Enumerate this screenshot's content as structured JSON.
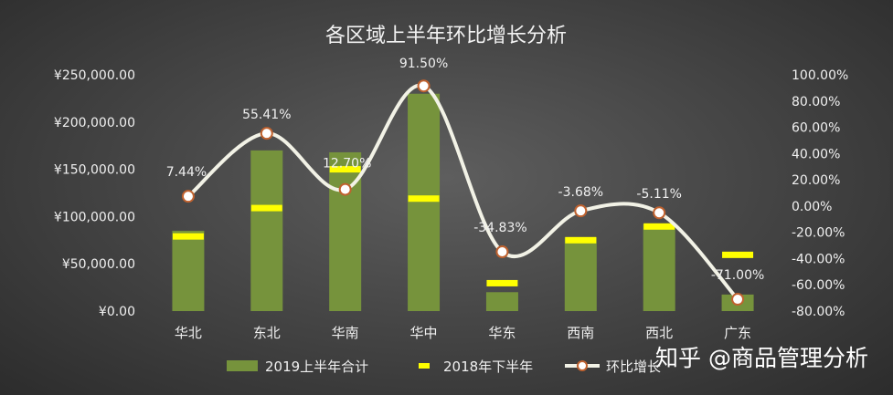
{
  "chart_data": {
    "type": "bar",
    "title": "各区域上半年环比增长分析",
    "categories": [
      "华北",
      "东北",
      "华南",
      "华中",
      "华东",
      "西南",
      "西北",
      "广东"
    ],
    "series": [
      {
        "name": "2019上半年合计",
        "type": "bar",
        "axis": "left",
        "values": [
          85000,
          170000,
          168000,
          230000,
          20000,
          78000,
          92000,
          17500
        ]
      },
      {
        "name": "2018年下半年",
        "type": "marker",
        "axis": "left",
        "values": [
          79000,
          109000,
          150000,
          119000,
          29500,
          75000,
          89500,
          59500
        ]
      },
      {
        "name": "环比增长",
        "type": "line",
        "axis": "right",
        "values": [
          7.44,
          55.41,
          12.7,
          91.5,
          -34.83,
          -3.68,
          -5.11,
          -71.0
        ],
        "labels": [
          "7.44%",
          "55.41%",
          "12.70%",
          "91.50%",
          "-34.83%",
          "-3.68%",
          "-5.11%",
          "-71.00%"
        ]
      }
    ],
    "y_left": {
      "ylim": [
        0,
        250000
      ],
      "ticks": [
        0,
        50000,
        100000,
        150000,
        200000,
        250000
      ],
      "tick_labels": [
        "¥0.00",
        "¥50,000.00",
        "¥100,000.00",
        "¥150,000.00",
        "¥200,000.00",
        "¥250,000.00"
      ]
    },
    "y_right": {
      "ylim": [
        -80,
        100
      ],
      "ticks": [
        -80,
        -60,
        -40,
        -20,
        0,
        20,
        40,
        60,
        80,
        100
      ],
      "tick_labels": [
        "-80.00%",
        "-60.00%",
        "-40.00%",
        "-20.00%",
        "0.00%",
        "20.00%",
        "40.00%",
        "60.00%",
        "80.00%",
        "100.00%"
      ]
    },
    "grid": false,
    "legend_position": "bottom"
  },
  "colors": {
    "bar": "#76933c",
    "marker": "#ffff00",
    "line": "#f2f2e6",
    "point_fill": "#ffffff",
    "point_stroke": "#c0622f"
  },
  "watermark": "知乎 @商品管理分析"
}
